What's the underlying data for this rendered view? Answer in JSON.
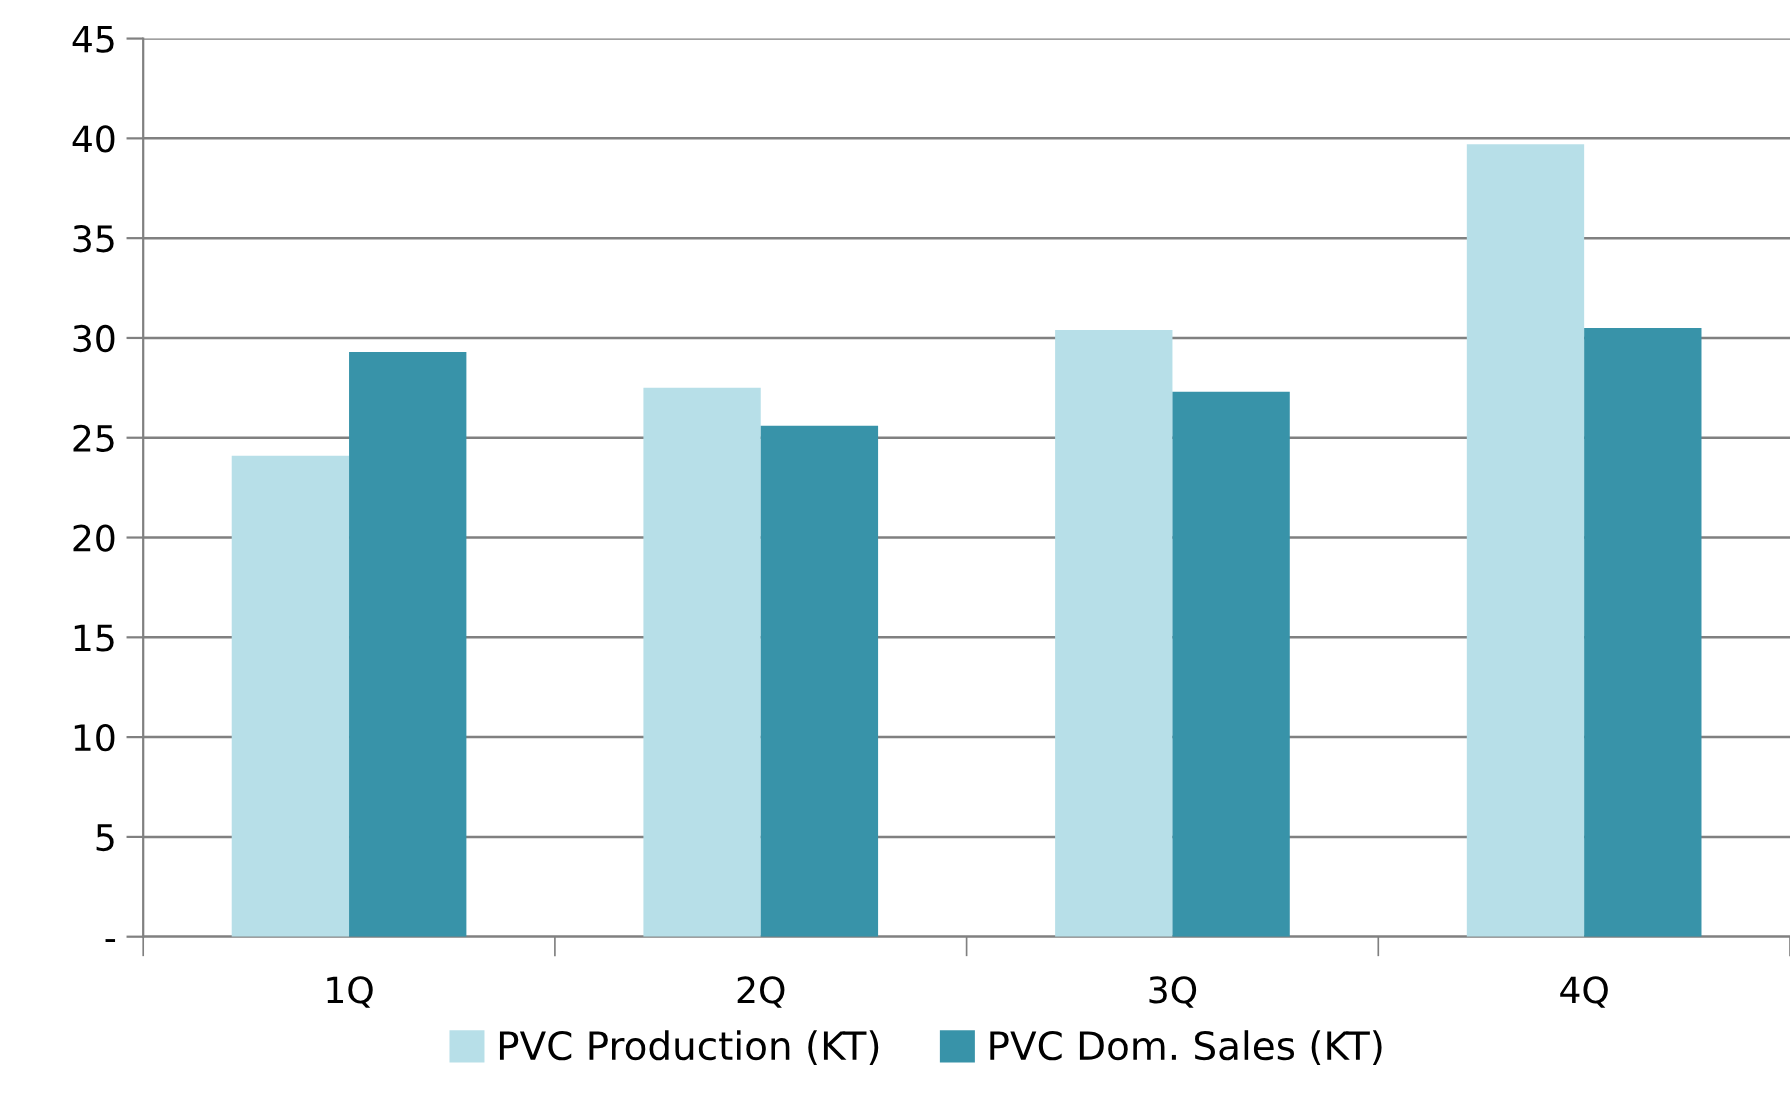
{
  "chart_data": {
    "type": "bar",
    "categories": [
      "1Q",
      "2Q",
      "3Q",
      "4Q"
    ],
    "series": [
      {
        "name": "PVC Production (KT)",
        "color": "#b7dfe8",
        "values": [
          24.1,
          27.5,
          30.4,
          39.7
        ]
      },
      {
        "name": "PVC Dom. Sales (KT)",
        "color": "#3893a9",
        "values": [
          29.3,
          25.6,
          27.3,
          30.5
        ]
      }
    ],
    "ylim": [
      0,
      45
    ],
    "yticks": [
      {
        "value": 0,
        "label": "-"
      },
      5,
      10,
      15,
      20,
      25,
      30,
      35,
      40,
      45
    ],
    "grid": "y",
    "legend": "bottom"
  }
}
